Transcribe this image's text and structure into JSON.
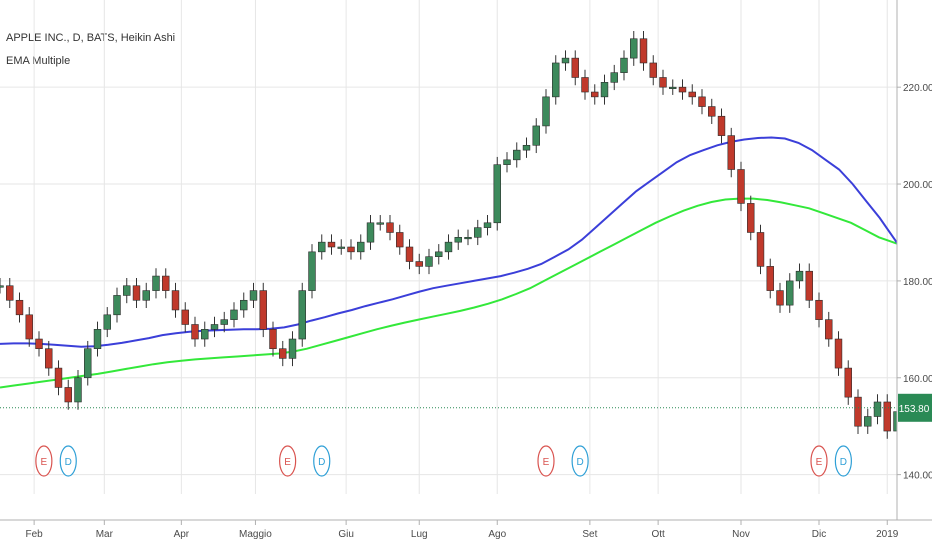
{
  "title": "APPLE INC., D, BATS, Heikin Ashi",
  "indicator": "EMA Multiple",
  "colors": {
    "up": "#3d8a5c",
    "down": "#c0392b",
    "ema_fast": "#3b3fd9",
    "ema_slow": "#33e83a",
    "price_line": "#2a8a55",
    "earnings": "#d9534f",
    "dividend": "#2e9fd6",
    "grid": "#e6e6e6"
  },
  "chart_data": {
    "type": "candlestick",
    "style": "Heikin Ashi",
    "ylim": [
      136,
      238
    ],
    "xlim": [
      0,
      92
    ],
    "yticks": [
      {
        "v": 140,
        "label": "140.00"
      },
      {
        "v": 160,
        "label": "160.00"
      },
      {
        "v": 180,
        "label": "180.00"
      },
      {
        "v": 200,
        "label": "200.00"
      },
      {
        "v": 220,
        "label": "220.00"
      }
    ],
    "xticks": [
      {
        "i": 3.5,
        "label": "Feb"
      },
      {
        "i": 10.7,
        "label": "Mar"
      },
      {
        "i": 18.6,
        "label": "Apr"
      },
      {
        "i": 26.2,
        "label": "Maggio"
      },
      {
        "i": 35.5,
        "label": "Giu"
      },
      {
        "i": 43,
        "label": "Lug"
      },
      {
        "i": 51,
        "label": "Ago"
      },
      {
        "i": 60.5,
        "label": "Set"
      },
      {
        "i": 67.5,
        "label": "Ott"
      },
      {
        "i": 76,
        "label": "Nov"
      },
      {
        "i": 84,
        "label": "Dic"
      },
      {
        "i": 91,
        "label": "2019"
      }
    ],
    "last_price": {
      "value": 153.8,
      "label": "153.80"
    },
    "close": [
      179,
      176,
      173,
      168,
      166,
      162,
      158,
      155,
      160,
      166,
      170,
      173,
      177,
      179,
      176,
      178,
      181,
      178,
      174,
      171,
      168,
      170,
      171,
      172,
      174,
      176,
      178,
      170,
      166,
      164,
      168,
      178,
      186,
      188,
      187,
      187,
      186,
      188,
      192,
      192,
      190,
      187,
      184,
      183,
      185,
      186,
      188,
      189,
      189,
      191,
      192,
      204,
      205,
      207,
      208,
      212,
      218,
      225,
      226,
      222,
      219,
      218,
      221,
      223,
      226,
      230,
      225,
      222,
      220,
      220,
      219,
      218,
      216,
      214,
      210,
      203,
      196,
      190,
      183,
      178,
      175,
      180,
      182,
      176,
      172,
      168,
      162,
      156,
      150,
      152,
      155,
      149,
      153,
      154
    ],
    "ema_fast": [
      167,
      167.1,
      167.1,
      167,
      166.8,
      166.6,
      166.4,
      166.5,
      166.8,
      167.2,
      167.7,
      168.2,
      168.8,
      169.2,
      169.5,
      169.7,
      169.8,
      169.9,
      170,
      170,
      170.1,
      170.4,
      171,
      171.8,
      172.5,
      173.3,
      174,
      174.8,
      175.5,
      176.2,
      177,
      177.8,
      178.5,
      179,
      179.5,
      180,
      180.5,
      181,
      181.7,
      182.5,
      183.5,
      185,
      186.5,
      188.5,
      191,
      193.5,
      196,
      198.5,
      200.5,
      202.5,
      204.5,
      206,
      207,
      208,
      208.7,
      209.2,
      209.5,
      209.6,
      209.4,
      208.5,
      207,
      205,
      203,
      200,
      196.5,
      193,
      189,
      185
    ],
    "ema_slow": [
      158,
      158.4,
      158.8,
      159.2,
      159.6,
      160,
      160.4,
      160.8,
      161.3,
      161.8,
      162.3,
      162.8,
      163.2,
      163.5,
      163.8,
      164,
      164.2,
      164.4,
      164.6,
      164.8,
      165,
      165.4,
      166,
      166.8,
      167.6,
      168.4,
      169.2,
      170,
      170.7,
      171.4,
      172,
      172.6,
      173.2,
      173.8,
      174.5,
      175.3,
      176.2,
      177.3,
      178.5,
      180,
      181.5,
      183,
      184.5,
      186,
      187.5,
      189,
      190.5,
      192,
      193.3,
      194.5,
      195.5,
      196.3,
      196.8,
      197,
      197,
      196.7,
      196.2,
      195.6,
      195,
      194,
      193,
      192,
      190.5,
      189,
      188,
      187
    ]
  },
  "events": [
    {
      "code": "E",
      "i": 4.5
    },
    {
      "code": "D",
      "i": 7
    },
    {
      "code": "E",
      "i": 29.5
    },
    {
      "code": "D",
      "i": 33
    },
    {
      "code": "E",
      "i": 56
    },
    {
      "code": "D",
      "i": 59.5
    },
    {
      "code": "E",
      "i": 84
    },
    {
      "code": "D",
      "i": 86.5
    }
  ]
}
